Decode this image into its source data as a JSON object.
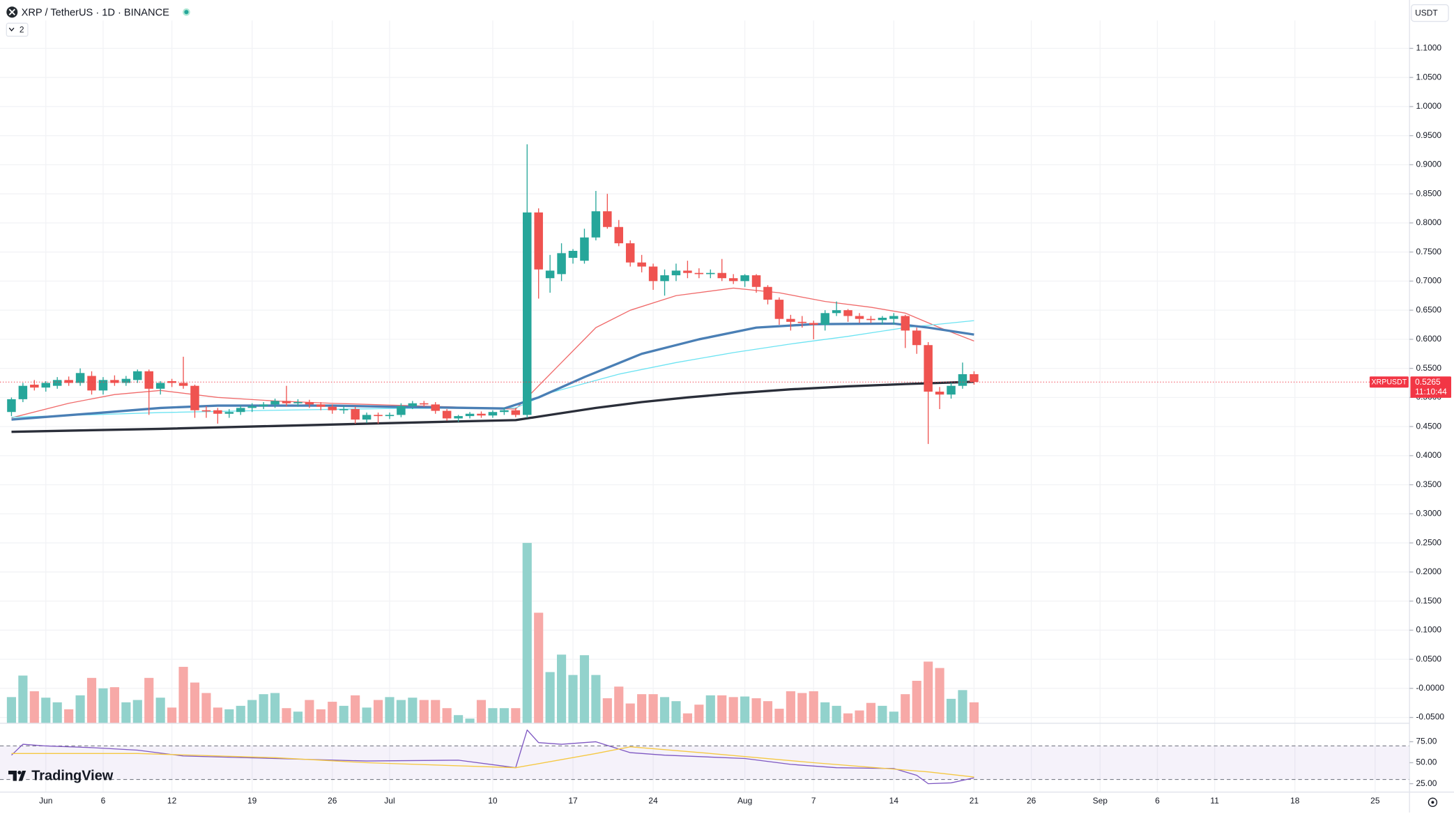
{
  "header": {
    "symbol": "XRP / TetherUS · 1D · BINANCE",
    "indicators": "2",
    "currency": "USDT",
    "logo": "TradingView"
  },
  "chart_data": [
    {
      "type": "candlestick",
      "up_color": "#26a69a",
      "down_color": "#ef5350",
      "grid": true,
      "x": [
        "05-29",
        "05-30",
        "05-31",
        "06-01",
        "06-02",
        "06-03",
        "06-04",
        "06-05",
        "06-06",
        "06-07",
        "06-08",
        "06-09",
        "06-10",
        "06-11",
        "06-12",
        "06-13",
        "06-14",
        "06-15",
        "06-16",
        "06-17",
        "06-18",
        "06-19",
        "06-20",
        "06-21",
        "06-22",
        "06-23",
        "06-24",
        "06-25",
        "06-26",
        "06-27",
        "06-28",
        "06-29",
        "06-30",
        "07-01",
        "07-02",
        "07-03",
        "07-04",
        "07-05",
        "07-06",
        "07-07",
        "07-08",
        "07-09",
        "07-10",
        "07-11",
        "07-12",
        "07-13",
        "07-14",
        "07-15",
        "07-16",
        "07-17",
        "07-18",
        "07-19",
        "07-20",
        "07-21",
        "07-22",
        "07-23",
        "07-24",
        "07-25",
        "07-26",
        "07-27",
        "07-28",
        "07-29",
        "07-30",
        "07-31",
        "08-01",
        "08-02",
        "08-03",
        "08-04",
        "08-05",
        "08-06",
        "08-07",
        "08-08",
        "08-09",
        "08-10",
        "08-11",
        "08-12",
        "08-13",
        "08-14",
        "08-15",
        "08-16",
        "08-17",
        "08-18",
        "08-19",
        "08-20",
        "08-21"
      ],
      "open": [
        0.475,
        0.497,
        0.522,
        0.517,
        0.52,
        0.53,
        0.525,
        0.537,
        0.512,
        0.53,
        0.525,
        0.53,
        0.545,
        0.515,
        0.528,
        0.525,
        0.52,
        0.478,
        0.478,
        0.472,
        0.475,
        0.482,
        0.485,
        0.488,
        0.494,
        0.49,
        0.492,
        0.488,
        0.484,
        0.478,
        0.48,
        0.462,
        0.47,
        0.468,
        0.47,
        0.485,
        0.49,
        0.488,
        0.477,
        0.464,
        0.468,
        0.472,
        0.469,
        0.475,
        0.478,
        0.47,
        0.818,
        0.705,
        0.712,
        0.74,
        0.735,
        0.775,
        0.82,
        0.793,
        0.765,
        0.732,
        0.725,
        0.7,
        0.71,
        0.718,
        0.714,
        0.712,
        0.714,
        0.705,
        0.7,
        0.71,
        0.69,
        0.668,
        0.635,
        0.63,
        0.628,
        0.625,
        0.645,
        0.65,
        0.64,
        0.635,
        0.633,
        0.635,
        0.64,
        0.615,
        0.59,
        0.51,
        0.505,
        0.52,
        0.54
      ],
      "high": [
        0.5,
        0.525,
        0.53,
        0.528,
        0.535,
        0.536,
        0.55,
        0.545,
        0.535,
        0.538,
        0.537,
        0.548,
        0.548,
        0.528,
        0.532,
        0.57,
        0.522,
        0.485,
        0.482,
        0.48,
        0.486,
        0.49,
        0.492,
        0.498,
        0.52,
        0.497,
        0.496,
        0.492,
        0.488,
        0.486,
        0.484,
        0.474,
        0.474,
        0.474,
        0.49,
        0.494,
        0.494,
        0.492,
        0.48,
        0.47,
        0.475,
        0.476,
        0.478,
        0.482,
        0.482,
        0.935,
        0.825,
        0.745,
        0.765,
        0.755,
        0.79,
        0.855,
        0.85,
        0.805,
        0.77,
        0.745,
        0.73,
        0.72,
        0.73,
        0.735,
        0.722,
        0.72,
        0.738,
        0.712,
        0.712,
        0.712,
        0.693,
        0.672,
        0.642,
        0.64,
        0.632,
        0.65,
        0.665,
        0.652,
        0.645,
        0.64,
        0.64,
        0.645,
        0.642,
        0.62,
        0.595,
        0.518,
        0.525,
        0.56,
        0.545
      ],
      "low": [
        0.468,
        0.492,
        0.512,
        0.51,
        0.515,
        0.52,
        0.52,
        0.505,
        0.505,
        0.52,
        0.52,
        0.525,
        0.47,
        0.505,
        0.518,
        0.515,
        0.465,
        0.465,
        0.455,
        0.465,
        0.47,
        0.475,
        0.48,
        0.482,
        0.485,
        0.484,
        0.482,
        0.478,
        0.472,
        0.472,
        0.455,
        0.456,
        0.455,
        0.463,
        0.466,
        0.48,
        0.484,
        0.472,
        0.46,
        0.458,
        0.464,
        0.465,
        0.465,
        0.47,
        0.466,
        0.465,
        0.67,
        0.68,
        0.7,
        0.73,
        0.73,
        0.77,
        0.79,
        0.76,
        0.725,
        0.715,
        0.685,
        0.675,
        0.7,
        0.705,
        0.705,
        0.705,
        0.7,
        0.695,
        0.69,
        0.68,
        0.66,
        0.625,
        0.615,
        0.62,
        0.6,
        0.615,
        0.64,
        0.63,
        0.628,
        0.628,
        0.625,
        0.625,
        0.585,
        0.575,
        0.42,
        0.48,
        0.498,
        0.515,
        0.522
      ],
      "close": [
        0.497,
        0.52,
        0.517,
        0.525,
        0.53,
        0.525,
        0.542,
        0.512,
        0.53,
        0.525,
        0.532,
        0.545,
        0.515,
        0.525,
        0.525,
        0.52,
        0.478,
        0.476,
        0.472,
        0.475,
        0.482,
        0.485,
        0.488,
        0.494,
        0.49,
        0.492,
        0.488,
        0.484,
        0.478,
        0.48,
        0.462,
        0.47,
        0.468,
        0.47,
        0.485,
        0.49,
        0.488,
        0.477,
        0.464,
        0.468,
        0.472,
        0.469,
        0.475,
        0.478,
        0.47,
        0.818,
        0.72,
        0.718,
        0.748,
        0.752,
        0.775,
        0.82,
        0.793,
        0.765,
        0.732,
        0.725,
        0.7,
        0.71,
        0.718,
        0.714,
        0.712,
        0.714,
        0.705,
        0.7,
        0.71,
        0.69,
        0.668,
        0.635,
        0.63,
        0.628,
        0.625,
        0.645,
        0.65,
        0.64,
        0.635,
        0.633,
        0.637,
        0.64,
        0.615,
        0.59,
        0.51,
        0.505,
        0.52,
        0.54,
        0.5265
      ],
      "volume": {
        "up_color": "#92d2cc",
        "down_color": "#f7a9a7",
        "values": [
          -0.015,
          0.022,
          -0.005,
          -0.016,
          -0.024,
          -0.036,
          -0.012,
          0.018,
          0.0,
          0.002,
          -0.024,
          -0.02,
          0.018,
          -0.016,
          -0.033,
          0.037,
          0.01,
          -0.008,
          -0.033,
          -0.036,
          -0.03,
          -0.02,
          -0.01,
          -0.008,
          -0.034,
          -0.04,
          -0.02,
          -0.036,
          -0.023,
          -0.03,
          -0.012,
          -0.033,
          -0.02,
          -0.015,
          -0.02,
          -0.016,
          -0.02,
          -0.02,
          -0.034,
          -0.046,
          -0.052,
          -0.02,
          -0.034,
          -0.034,
          -0.034,
          0.25,
          0.13,
          0.028,
          0.058,
          0.023,
          0.057,
          0.023,
          -0.017,
          0.003,
          -0.026,
          -0.01,
          -0.01,
          -0.015,
          -0.022,
          -0.043,
          -0.028,
          -0.012,
          -0.012,
          -0.015,
          -0.014,
          -0.017,
          -0.022,
          -0.035,
          -0.005,
          -0.008,
          -0.005,
          -0.024,
          -0.03,
          -0.043,
          -0.038,
          -0.025,
          -0.03,
          -0.04,
          -0.01,
          0.013,
          0.046,
          0.035,
          -0.018,
          -0.003,
          -0.024
        ]
      },
      "overlays": [
        {
          "color": "#f06a6a",
          "width": 1,
          "x": [
            "05-29",
            "06-03",
            "06-07",
            "06-11",
            "06-16",
            "06-21",
            "06-26",
            "07-01",
            "07-06",
            "07-12",
            "07-14",
            "07-16",
            "07-19",
            "07-22",
            "07-26",
            "07-31",
            "08-04",
            "08-08",
            "08-12",
            "08-15",
            "08-18",
            "08-21"
          ],
          "values": [
            0.465,
            0.49,
            0.505,
            0.512,
            0.5,
            0.494,
            0.49,
            0.487,
            0.484,
            0.48,
            0.52,
            0.56,
            0.62,
            0.65,
            0.675,
            0.688,
            0.68,
            0.665,
            0.655,
            0.645,
            0.62,
            0.597
          ]
        },
        {
          "color": "#6ce3f2",
          "width": 1,
          "x": [
            "05-29",
            "06-11",
            "06-21",
            "07-01",
            "07-12",
            "07-15",
            "07-21",
            "07-26",
            "07-31",
            "08-05",
            "08-10",
            "08-15",
            "08-21"
          ],
          "values": [
            0.466,
            0.474,
            0.478,
            0.481,
            0.482,
            0.508,
            0.54,
            0.56,
            0.577,
            0.592,
            0.605,
            0.62,
            0.632
          ]
        },
        {
          "color": "#4a7fb5",
          "width": 2.5,
          "x": [
            "05-29",
            "06-06",
            "06-11",
            "06-16",
            "06-26",
            "07-01",
            "07-11",
            "07-14",
            "07-18",
            "07-23",
            "07-28",
            "08-02",
            "08-07",
            "08-14",
            "08-17",
            "08-21"
          ],
          "values": [
            0.462,
            0.474,
            0.482,
            0.486,
            0.486,
            0.484,
            0.481,
            0.5,
            0.535,
            0.575,
            0.6,
            0.62,
            0.626,
            0.627,
            0.62,
            0.608
          ]
        },
        {
          "color": "#2a2e39",
          "width": 2.5,
          "x": [
            "05-29",
            "06-11",
            "06-21",
            "07-01",
            "07-12",
            "07-15",
            "07-19",
            "07-23",
            "07-27",
            "07-31",
            "08-05",
            "08-10",
            "08-15",
            "08-21"
          ],
          "values": [
            0.441,
            0.446,
            0.451,
            0.456,
            0.461,
            0.47,
            0.482,
            0.492,
            0.5,
            0.507,
            0.514,
            0.519,
            0.523,
            0.527
          ]
        }
      ],
      "last_price": 0.5265,
      "last_label": "XRPUSDT",
      "countdown": "11:10:44",
      "last_color": "#f23645",
      "xlim": [
        "05-28",
        "09-28"
      ],
      "xticks": [
        {
          "value": "06-01",
          "label": "Jun"
        },
        {
          "value": "06-06",
          "label": "6"
        },
        {
          "value": "06-12",
          "label": "12"
        },
        {
          "value": "06-19",
          "label": "19"
        },
        {
          "value": "06-26",
          "label": "26"
        },
        {
          "value": "07-01",
          "label": "Jul"
        },
        {
          "value": "07-10",
          "label": "10"
        },
        {
          "value": "07-17",
          "label": "17"
        },
        {
          "value": "07-24",
          "label": "24"
        },
        {
          "value": "08-01",
          "label": "Aug"
        },
        {
          "value": "08-07",
          "label": "7"
        },
        {
          "value": "08-14",
          "label": "14"
        },
        {
          "value": "08-21",
          "label": "21"
        },
        {
          "value": "08-26",
          "label": "26"
        },
        {
          "value": "09-01",
          "label": "Sep"
        },
        {
          "value": "09-06",
          "label": "6"
        },
        {
          "value": "09-11",
          "label": "11"
        },
        {
          "value": "09-18",
          "label": "18"
        },
        {
          "value": "09-25",
          "label": "25"
        }
      ],
      "ylim": [
        -0.06,
        1.148
      ],
      "yticks": [
        {
          "value": 1.1,
          "label": "1.1000"
        },
        {
          "value": 1.05,
          "label": "1.0500"
        },
        {
          "value": 1.0,
          "label": "1.0000"
        },
        {
          "value": 0.95,
          "label": "0.9500"
        },
        {
          "value": 0.9,
          "label": "0.9000"
        },
        {
          "value": 0.85,
          "label": "0.8500"
        },
        {
          "value": 0.8,
          "label": "0.8000"
        },
        {
          "value": 0.75,
          "label": "0.7500"
        },
        {
          "value": 0.7,
          "label": "0.7000"
        },
        {
          "value": 0.65,
          "label": "0.6500"
        },
        {
          "value": 0.6,
          "label": "0.6000"
        },
        {
          "value": 0.55,
          "label": "0.5500"
        },
        {
          "value": 0.5,
          "label": "0.5000"
        },
        {
          "value": 0.45,
          "label": "0.4500"
        },
        {
          "value": 0.4,
          "label": "0.4000"
        },
        {
          "value": 0.35,
          "label": "0.3500"
        },
        {
          "value": 0.3,
          "label": "0.3000"
        },
        {
          "value": 0.25,
          "label": "0.2500"
        },
        {
          "value": 0.2,
          "label": "0.2000"
        },
        {
          "value": 0.15,
          "label": "0.1500"
        },
        {
          "value": 0.1,
          "label": "0.1000"
        },
        {
          "value": 0.05,
          "label": "0.0500"
        },
        {
          "value": 0,
          "label": "-0.0000"
        },
        {
          "value": -0.05,
          "label": "-0.0500"
        }
      ]
    },
    {
      "type": "line",
      "ylim": [
        15,
        97
      ],
      "bands": [
        30,
        70
      ],
      "band_color": "#7e57c2",
      "yticks": [
        {
          "value": 75,
          "label": "75.00"
        },
        {
          "value": 50,
          "label": "50.00"
        },
        {
          "value": 25,
          "label": "25.00"
        }
      ],
      "series": [
        {
          "color": "#7e57c2",
          "x": [
            "05-29",
            "05-30",
            "06-01",
            "06-05",
            "06-09",
            "06-13",
            "06-21",
            "06-29",
            "07-07",
            "07-12",
            "07-13",
            "07-14",
            "07-16",
            "07-19",
            "07-22",
            "07-25",
            "08-01",
            "08-05",
            "08-09",
            "08-14",
            "08-16",
            "08-17",
            "08-19",
            "08-21"
          ],
          "values": [
            59,
            72,
            70,
            68,
            65,
            58,
            55,
            52,
            53,
            44,
            89,
            74,
            72,
            75,
            62,
            59,
            55,
            48,
            44,
            43,
            35,
            25,
            26,
            32
          ]
        },
        {
          "color": "#f5c842",
          "x": [
            "05-29",
            "06-09",
            "06-21",
            "06-29",
            "07-12",
            "07-19",
            "07-22",
            "07-29",
            "08-07",
            "08-17",
            "08-21"
          ],
          "values": [
            61,
            61,
            56,
            50,
            44,
            61,
            69,
            61,
            50,
            39,
            33
          ]
        }
      ]
    }
  ]
}
